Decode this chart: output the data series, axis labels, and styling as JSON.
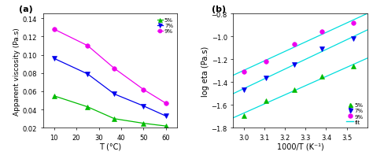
{
  "panel_a": {
    "title": "(a)",
    "xlabel": "T (°C)",
    "ylabel": "Apparent viscosity (Pa.s)",
    "xlim": [
      5,
      65
    ],
    "ylim": [
      0.02,
      0.145
    ],
    "yticks": [
      0.02,
      0.04,
      0.06,
      0.08,
      0.1,
      0.12,
      0.14
    ],
    "xticks": [
      10,
      20,
      30,
      40,
      50,
      60
    ],
    "series": [
      {
        "label": "5%",
        "color": "#00bb00",
        "marker": "^",
        "markersize": 4,
        "x": [
          10,
          25,
          37,
          50,
          60
        ],
        "y": [
          0.055,
          0.043,
          0.03,
          0.025,
          0.022
        ]
      },
      {
        "label": "7%",
        "color": "#0000ee",
        "marker": "v",
        "markersize": 4,
        "x": [
          10,
          25,
          37,
          50,
          60
        ],
        "y": [
          0.096,
          0.079,
          0.057,
          0.044,
          0.033
        ]
      },
      {
        "label": "9%",
        "color": "#ee00ee",
        "marker": "o",
        "markersize": 4,
        "x": [
          10,
          25,
          37,
          50,
          60
        ],
        "y": [
          0.128,
          0.11,
          0.085,
          0.062,
          0.047
        ]
      }
    ]
  },
  "panel_b": {
    "title": "(b)",
    "xlabel": "1000/T (K⁻¹)",
    "ylabel": "log eta (Pa.s)",
    "xlim": [
      2.95,
      3.6
    ],
    "ylim": [
      -1.8,
      -0.8
    ],
    "yticks": [
      -1.8,
      -1.6,
      -1.4,
      -1.2,
      -1.0,
      -0.8
    ],
    "xticks": [
      3.0,
      3.1,
      3.2,
      3.3,
      3.4,
      3.5
    ],
    "series": [
      {
        "label": "5%",
        "color": "#00bb00",
        "marker": "^",
        "markersize": 4,
        "x": [
          3.003,
          3.107,
          3.247,
          3.381,
          3.533
        ],
        "y": [
          -1.695,
          -1.565,
          -1.463,
          -1.352,
          -1.262
        ]
      },
      {
        "label": "7%",
        "color": "#0000ee",
        "marker": "v",
        "markersize": 4,
        "x": [
          3.003,
          3.107,
          3.247,
          3.381,
          3.533
        ],
        "y": [
          -1.467,
          -1.36,
          -1.243,
          -1.107,
          -1.019
        ]
      },
      {
        "label": "9%",
        "color": "#ee00ee",
        "marker": "o",
        "markersize": 4,
        "x": [
          3.003,
          3.107,
          3.247,
          3.381,
          3.533
        ],
        "y": [
          -1.31,
          -1.215,
          -1.065,
          -0.96,
          -0.88
        ]
      }
    ],
    "fit_color": "#00dddd",
    "fit_label": "fit"
  },
  "bg_color": "#ffffff",
  "plot_bg": "#ffffff",
  "tick_labelsize": 6,
  "label_fontsize": 7,
  "title_fontsize": 8
}
